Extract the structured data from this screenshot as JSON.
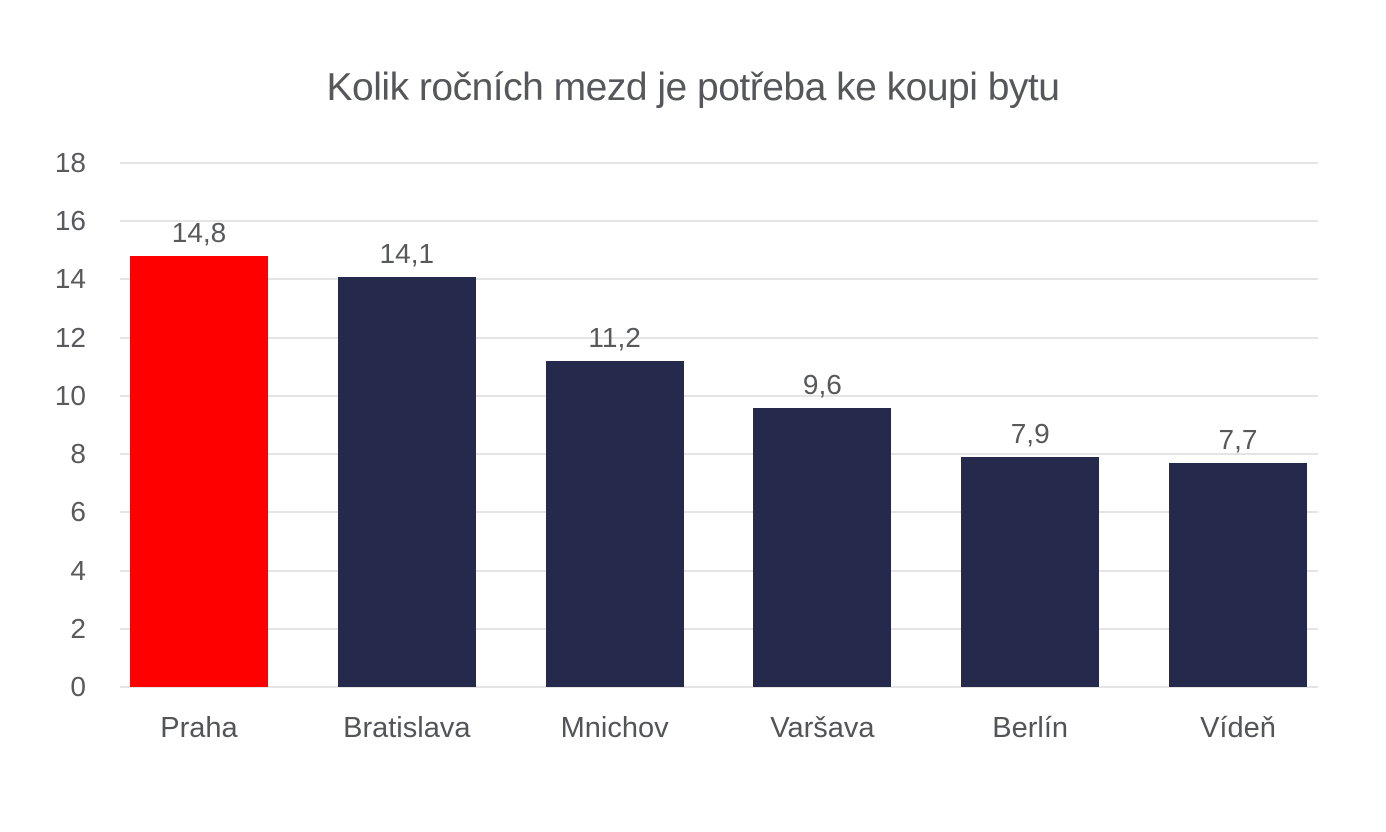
{
  "chart_data": {
    "type": "bar",
    "title": "Kolik ročních mezd je potřeba ke koupi bytu",
    "categories": [
      "Praha",
      "Bratislava",
      "Mnichov",
      "Varšava",
      "Berlín",
      "Vídeň"
    ],
    "values": [
      14.8,
      14.1,
      11.2,
      9.6,
      7.9,
      7.7
    ],
    "value_labels": [
      "14,8",
      "14,1",
      "11,2",
      "9,6",
      "7,9",
      "7,7"
    ],
    "xlabel": "",
    "ylabel": "",
    "ylim": [
      0,
      18
    ],
    "yticks": [
      0,
      2,
      4,
      6,
      8,
      10,
      12,
      14,
      16,
      18
    ],
    "ytick_labels": [
      "0",
      "2",
      "4",
      "6",
      "8",
      "10",
      "12",
      "14",
      "16",
      "18"
    ],
    "grid": true,
    "legend": false,
    "highlight_index": 0,
    "colors": {
      "highlight_bar": "#fe0000",
      "default_bar": "#252a4d",
      "gridline": "#e4e4e4",
      "title_text": "#55575b",
      "label_text": "#58595b"
    }
  }
}
